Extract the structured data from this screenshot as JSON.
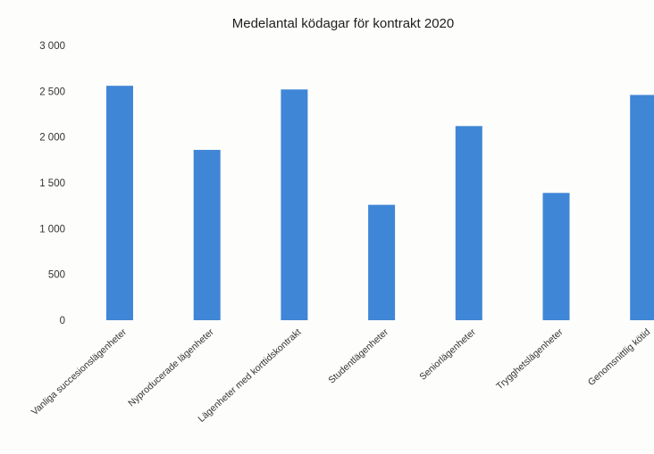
{
  "chart_data": {
    "type": "bar",
    "title": "Medelantal ködagar för kontrakt 2020",
    "xlabel": "",
    "ylabel": "",
    "ylim": [
      0,
      3000
    ],
    "yticks": [
      0,
      500,
      1000,
      1500,
      2000,
      2500,
      3000
    ],
    "ytick_labels": [
      "0",
      "500",
      "1 000",
      "1 500",
      "2 000",
      "2 500",
      "3 000"
    ],
    "categories": [
      "Vanliga succesionslägenheter",
      "Nyproducerade lägenheter",
      "Lägenheter med korttidskontrakt",
      "Studentlägenheter",
      "Seniorlägenheter",
      "Trygghetslägenheter",
      "Genomsnittlig kötid"
    ],
    "values": [
      2560,
      1860,
      2520,
      1260,
      2120,
      1390,
      2460
    ],
    "bar_color": "#3f86d6",
    "grid": false,
    "legend": "none"
  }
}
